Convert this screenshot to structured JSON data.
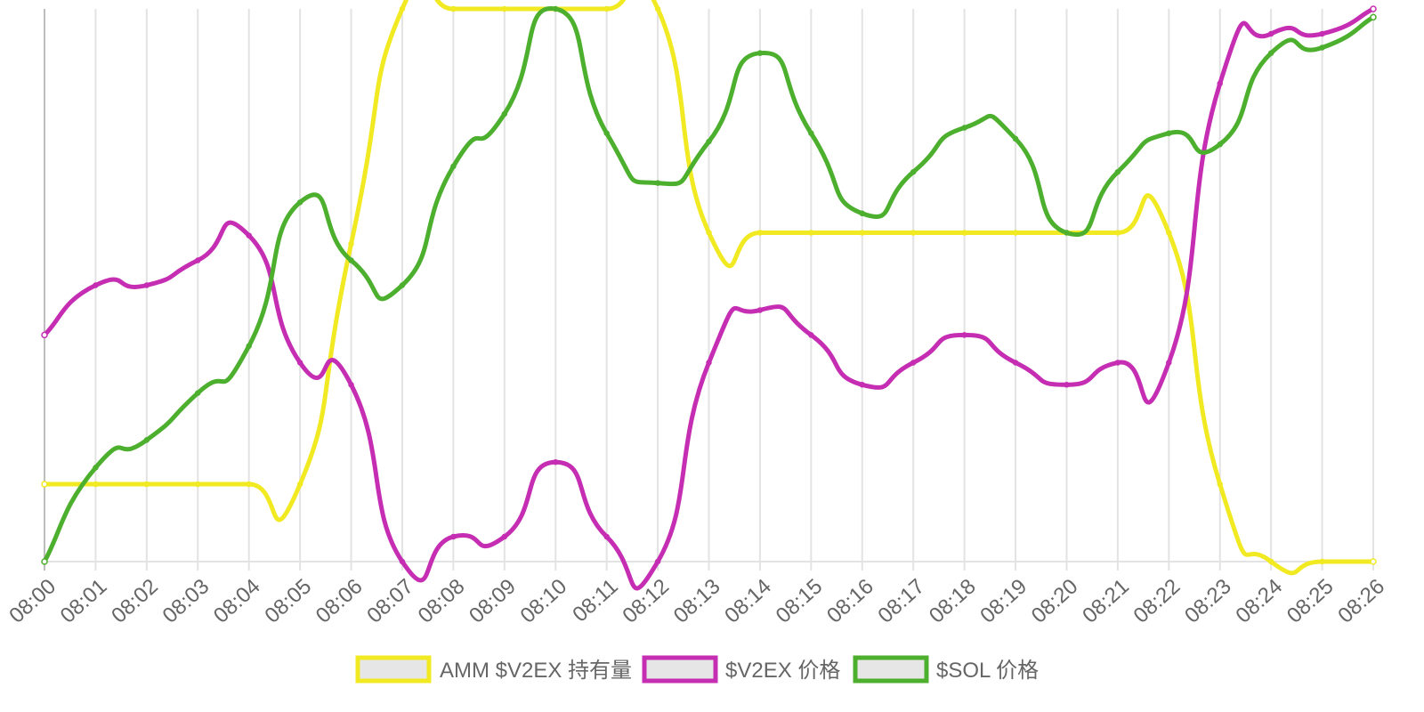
{
  "chart_data": {
    "type": "line",
    "x": [
      "08:00",
      "08:01",
      "08:02",
      "08:03",
      "08:04",
      "08:05",
      "08:06",
      "08:07",
      "08:08",
      "08:09",
      "08:10",
      "08:11",
      "08:12",
      "08:13",
      "08:14",
      "08:15",
      "08:16",
      "08:17",
      "08:18",
      "08:19",
      "08:20",
      "08:21",
      "08:22",
      "08:23",
      "08:24",
      "08:25",
      "08:26"
    ],
    "series": [
      {
        "name": "AMM $V2EX 持有量",
        "color": "#f1ea22",
        "values": [
          0.14,
          0.14,
          0.14,
          0.14,
          0.14,
          0.14,
          0.575,
          1.0,
          1.0,
          1.0,
          1.0,
          1.0,
          1.0,
          0.595,
          0.595,
          0.595,
          0.595,
          0.595,
          0.595,
          0.595,
          0.595,
          0.595,
          0.595,
          0.14,
          0.0,
          0.0,
          0.0
        ]
      },
      {
        "name": "$V2EX 价格",
        "color": "#c52db2",
        "values": [
          0.41,
          0.5,
          0.5,
          0.545,
          0.59,
          0.36,
          0.32,
          0.0,
          0.045,
          0.045,
          0.18,
          0.045,
          0.0,
          0.36,
          0.455,
          0.41,
          0.32,
          0.36,
          0.41,
          0.36,
          0.32,
          0.36,
          0.36,
          0.865,
          0.955,
          0.955,
          1.0
        ]
      },
      {
        "name": "$SOL 价格",
        "color": "#4caf2e",
        "values": [
          0.0,
          0.17,
          0.22,
          0.305,
          0.39,
          0.65,
          0.545,
          0.5,
          0.715,
          0.81,
          1.0,
          0.775,
          0.685,
          0.76,
          0.92,
          0.775,
          0.63,
          0.705,
          0.785,
          0.765,
          0.595,
          0.705,
          0.775,
          0.755,
          0.92,
          0.93,
          0.985
        ]
      }
    ],
    "ylim": [
      0,
      1
    ],
    "grid": "vertical",
    "legend": "bottom"
  }
}
